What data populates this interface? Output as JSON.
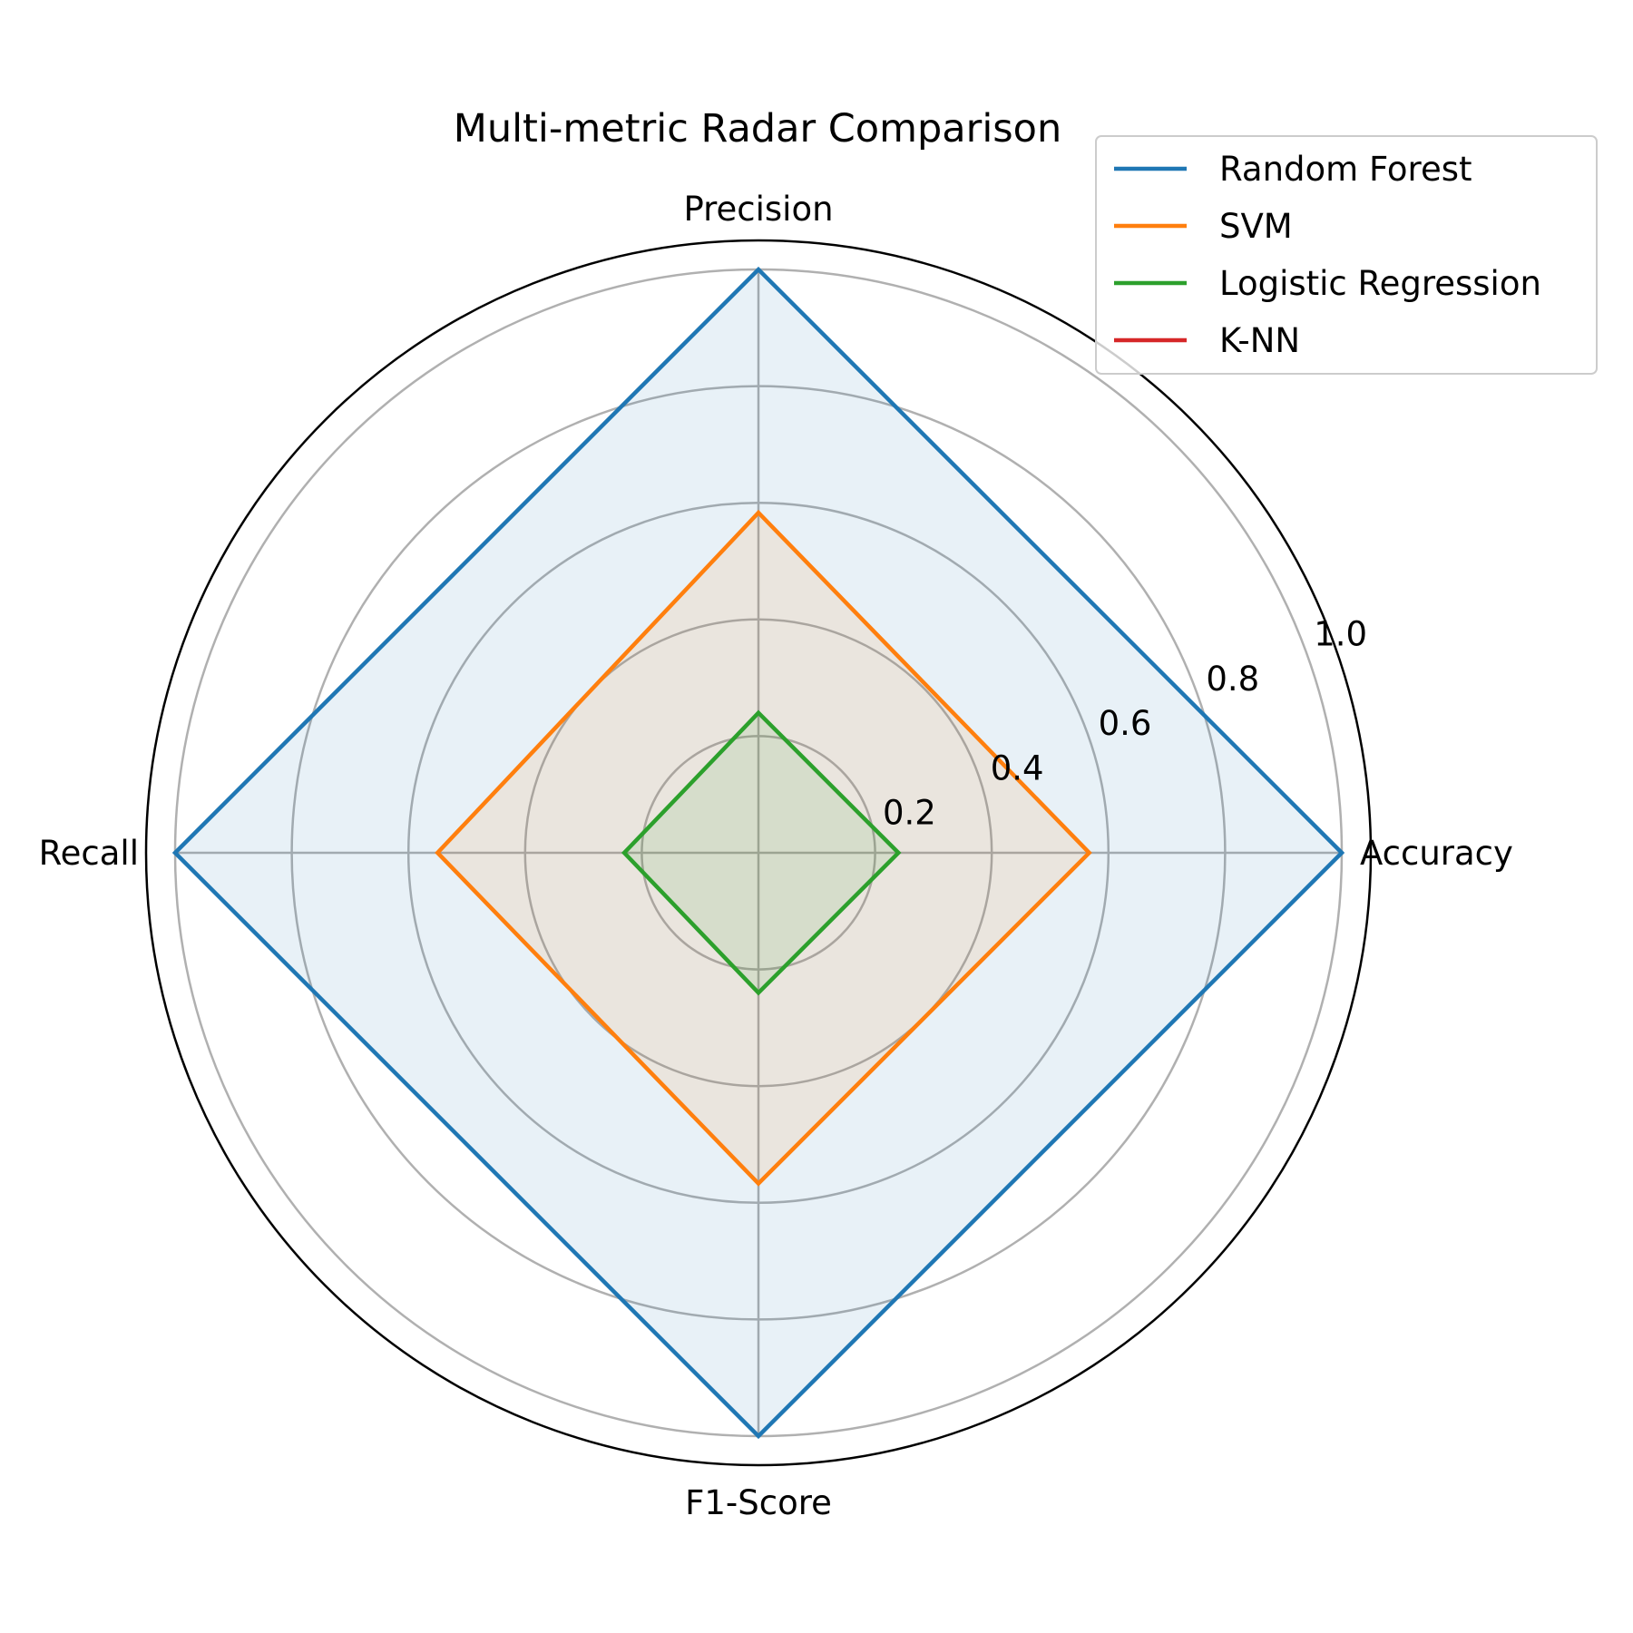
{
  "chart_data": {
    "type": "radar",
    "title": "Multi-metric Radar Comparison",
    "axes": [
      "Accuracy",
      "Precision",
      "Recall",
      "F1-Score"
    ],
    "rlim": [
      0,
      1.0
    ],
    "rticks": [
      0.2,
      0.4,
      0.6,
      0.8,
      1.0
    ],
    "rtick_labels": [
      "0.2",
      "0.4",
      "0.6",
      "0.8",
      "1.0"
    ],
    "grid": true,
    "legend": "top-right",
    "series": [
      {
        "name": "Random Forest",
        "color": "#1f77b4",
        "values": [
          1.0,
          1.0,
          1.0,
          1.0
        ]
      },
      {
        "name": "SVM",
        "color": "#ff7f0e",
        "values": [
          0.567,
          0.583,
          0.55,
          0.567
        ]
      },
      {
        "name": "Logistic Regression",
        "color": "#2ca02c",
        "values": [
          0.24,
          0.24,
          0.23,
          0.24
        ]
      },
      {
        "name": "K-NN",
        "color": "#d62728",
        "values": [
          0,
          0,
          0,
          0
        ]
      }
    ]
  }
}
